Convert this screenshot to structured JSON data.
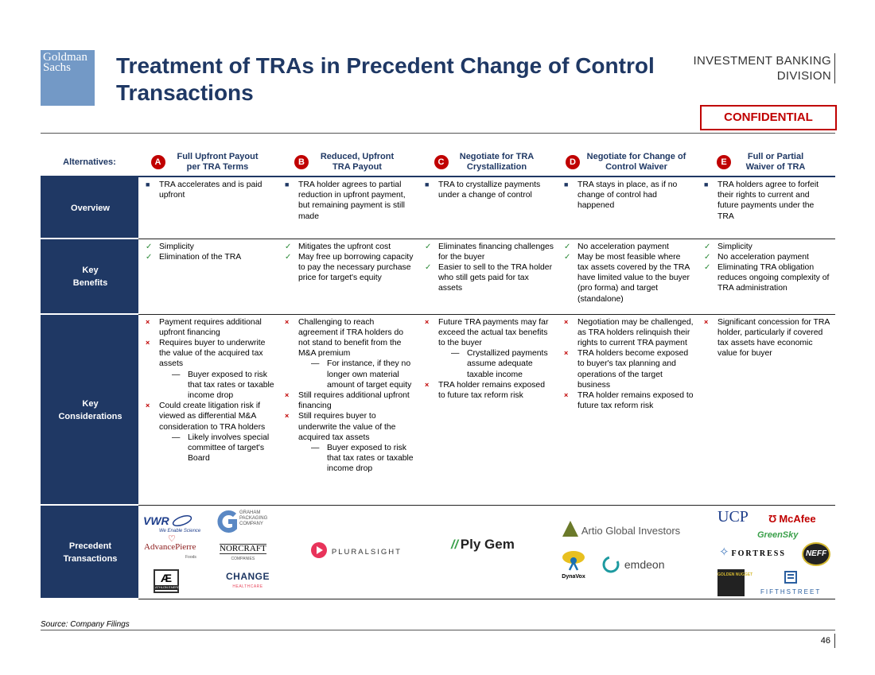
{
  "header": {
    "logo_line1": "Goldman",
    "logo_line2": "Sachs",
    "title": "Treatment of TRAs in Precedent Change of Control Transactions",
    "division_line1": "INVESTMENT BANKING",
    "division_line2": "DIVISION",
    "confidential": "CONFIDENTIAL"
  },
  "table": {
    "alternatives_label": "Alternatives:",
    "columns": [
      {
        "letter": "A",
        "title": "Full Upfront Payout per TRA Terms"
      },
      {
        "letter": "B",
        "title": "Reduced, Upfront TRA Payout"
      },
      {
        "letter": "C",
        "title": "Negotiate for TRA Crystallization"
      },
      {
        "letter": "D",
        "title": "Negotiate for Change of Control Waiver"
      },
      {
        "letter": "E",
        "title": "Full or Partial Waiver of TRA"
      }
    ],
    "rows": [
      {
        "label": "Overview",
        "cells": [
          [
            {
              "text": "TRA accelerates and is paid upfront"
            }
          ],
          [
            {
              "text": "TRA holder agrees to partial reduction in upfront payment, but remaining payment is still made"
            }
          ],
          [
            {
              "text": "TRA to crystallize payments under a change of control"
            }
          ],
          [
            {
              "text": "TRA stays in place, as if no change of control had happened"
            }
          ],
          [
            {
              "text": "TRA holders agree to forfeit their rights to current and future payments under the TRA"
            }
          ]
        ]
      },
      {
        "label": "Key Benefits",
        "cells": [
          [
            {
              "text": "Simplicity"
            },
            {
              "text": "Elimination of the TRA"
            }
          ],
          [
            {
              "text": "Mitigates the upfront cost"
            },
            {
              "text": "May free up borrowing capacity to pay the necessary purchase price for target's equity"
            }
          ],
          [
            {
              "text": "Eliminates financing challenges for the buyer"
            },
            {
              "text": "Easier to sell to the TRA holder who still gets paid for tax assets"
            }
          ],
          [
            {
              "text": "No acceleration payment"
            },
            {
              "text": "May be most feasible where tax assets covered by the TRA have limited value to the buyer (pro forma) and target (standalone)"
            }
          ],
          [
            {
              "text": "Simplicity"
            },
            {
              "text": "No acceleration payment"
            },
            {
              "text": "Eliminating TRA obligation reduces ongoing complexity of TRA administration"
            }
          ]
        ]
      },
      {
        "label": "Key Considerations",
        "cells": [
          [
            {
              "text": "Payment requires additional upfront financing"
            },
            {
              "text": "Requires buyer to underwrite the value of the acquired tax assets",
              "subs": [
                "Buyer exposed to risk that tax rates or taxable income drop"
              ]
            },
            {
              "text": "Could create litigation risk if viewed as differential M&A consideration to TRA holders",
              "subs": [
                "Likely involves special committee of target's Board"
              ]
            }
          ],
          [
            {
              "text": "Challenging to reach agreement if TRA holders do not stand to benefit from the M&A premium",
              "subs": [
                "For instance, if they no longer own material amount of target equity"
              ]
            },
            {
              "text": "Still requires additional upfront financing"
            },
            {
              "text": "Still requires buyer to underwrite the value of the acquired tax assets",
              "subs": [
                "Buyer exposed to risk that tax rates or taxable income drop"
              ]
            }
          ],
          [
            {
              "text": "Future TRA payments may far exceed the actual tax benefits to the buyer",
              "subs": [
                "Crystallized payments assume adequate taxable income"
              ]
            },
            {
              "text": "TRA holder remains exposed to future tax reform risk"
            }
          ],
          [
            {
              "text": "Negotiation may be challenged, as TRA holders relinquish their rights to current TRA payment"
            },
            {
              "text": "TRA holders become exposed to buyer's tax planning and operations of the target business"
            },
            {
              "text": "TRA holder remains exposed to future tax reform risk"
            }
          ],
          [
            {
              "text": "Significant concession for TRA holder, particularly if covered tax assets have economic value for buyer"
            }
          ]
        ]
      },
      {
        "label": "Precedent Transactions"
      }
    ],
    "markers": {
      "overview": "■",
      "benefits": "✓",
      "considerations": "×",
      "dash": "—"
    }
  },
  "logos": {
    "vwr": "VWR",
    "vwr_tag": "We Enable Science",
    "graham1": "GRAHAM",
    "graham2": "PACKAGING",
    "graham3": "COMPANY",
    "advancepierre": "AdvancePierre",
    "advancepierre_sub": "Foods",
    "norcraft": "NORCRAFT",
    "norcraft_sub": "COMPANIES",
    "athlon": "ATHLON ENERGY",
    "change": "CHANGE",
    "change_sub": "HEALTHCARE",
    "pluralsight": "PLURALSIGHT",
    "plygem": "Ply Gem",
    "artio": "Artio Global Investors",
    "dynavox": "DynaVox",
    "emdeon": "emdeon",
    "ucp": "UCP",
    "mcafee": "McAfee",
    "greensky": "GreenSky",
    "fortress": "FORTRESS",
    "neff": "NEFF",
    "golden_nugget": "GOLDEN NUGGET",
    "fifthstreet": "FIFTHSTREET"
  },
  "footer": {
    "source": "Source: Company Filings",
    "page": "46"
  },
  "colors": {
    "navy": "#1f3864",
    "red": "#c00000",
    "logo_blue": "#7399c6",
    "check_green": "#2e8b3a"
  }
}
